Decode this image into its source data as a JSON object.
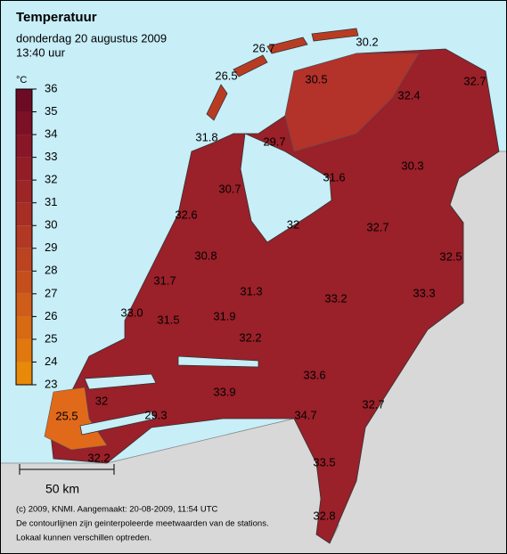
{
  "header": {
    "title": "Temperatuur",
    "subtitle": "donderdag 20 augustus 2009",
    "time": "13:40 uur"
  },
  "legend": {
    "unit": "°C",
    "range": [
      23,
      36
    ],
    "ticks": [
      23,
      24,
      25,
      26,
      27,
      28,
      29,
      30,
      31,
      32,
      33,
      34,
      35,
      36
    ],
    "colors": [
      "#e8890a",
      "#e0780f",
      "#d86a14",
      "#cf5c18",
      "#c54f1c",
      "#bb431f",
      "#b13822",
      "#a72e24",
      "#9d2526",
      "#931d27",
      "#881627",
      "#7c1026",
      "#6d0b24"
    ]
  },
  "stations": [
    26.7,
    30.2,
    26.5,
    30.5,
    32.4,
    32.7,
    31.8,
    29.7,
    30.3,
    31.6,
    30.7,
    32.6,
    32.0,
    32.7,
    32.5,
    30.8,
    31.7,
    31.3,
    33.3,
    33.2,
    {
      "value": 33,
      "label": "33.0"
    },
    31.5,
    31.9,
    32.2,
    33.6,
    33.9,
    32.0,
    32.7,
    34.7,
    25.5,
    29.3,
    32.2,
    33.5,
    32.8
  ],
  "scale": {
    "label": "50 km"
  },
  "footer": [
    "(c) 2009, KNMI. Aangemaakt: 20-08-2009, 11:54 UTC",
    "De contourlijnen zijn geinterpoleerde meetwaarden van de stations.",
    "Lokaal kunnen verschillen optreden."
  ]
}
